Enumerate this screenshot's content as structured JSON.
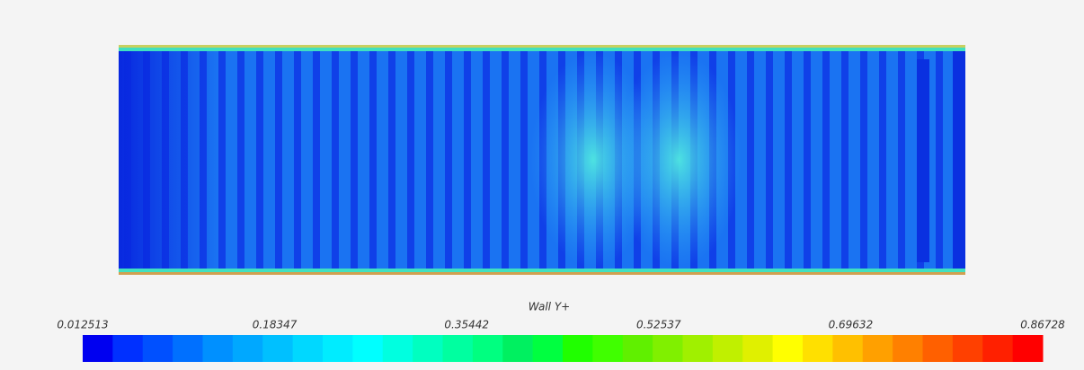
{
  "chart_data": {
    "type": "contour",
    "title": "Wall Y+",
    "colorbar": {
      "lim": [
        0.012513,
        0.86728
      ],
      "ticks": [
        0.012513,
        0.18347,
        0.35442,
        0.52537,
        0.69632,
        0.86728
      ],
      "colors": [
        "#0000f0",
        "#0030ff",
        "#0050ff",
        "#0070ff",
        "#0090ff",
        "#00a8ff",
        "#00c0ff",
        "#00d8ff",
        "#00ecff",
        "#00ffff",
        "#00ffe0",
        "#00ffc0",
        "#00ffa0",
        "#00ff80",
        "#00f060",
        "#00ff40",
        "#20ff00",
        "#40ff00",
        "#60f000",
        "#80f000",
        "#a0f000",
        "#c0f000",
        "#e0f000",
        "#ffff00",
        "#ffe000",
        "#ffc000",
        "#ffa000",
        "#ff8000",
        "#ff6000",
        "#ff4000",
        "#ff2000",
        "#ff0000"
      ]
    }
  }
}
